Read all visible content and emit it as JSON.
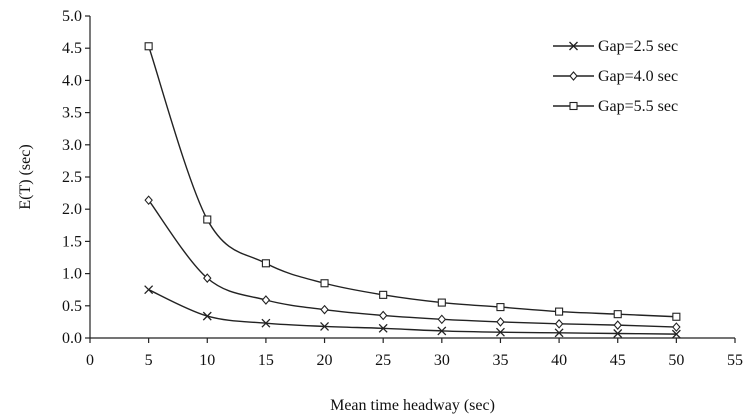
{
  "chart_data": {
    "type": "line",
    "title": "",
    "xlabel": "Mean time headway (sec)",
    "ylabel": "E(T) (sec)",
    "xlim": [
      0,
      55
    ],
    "ylim": [
      0,
      5.0
    ],
    "x_ticks": [
      "0",
      "5",
      "10",
      "15",
      "20",
      "25",
      "30",
      "35",
      "40",
      "45",
      "50",
      "55"
    ],
    "y_ticks": [
      "0.0",
      "0.5",
      "1.0",
      "1.5",
      "2.0",
      "2.5",
      "3.0",
      "3.5",
      "4.0",
      "4.5",
      "5.0"
    ],
    "grid": false,
    "legend_position": "top-right",
    "x": [
      5,
      10,
      15,
      20,
      25,
      30,
      35,
      40,
      45,
      50
    ],
    "series": [
      {
        "name": "Gap=2.5 sec",
        "marker": "x",
        "values": [
          0.75,
          0.34,
          0.23,
          0.18,
          0.15,
          0.11,
          0.09,
          0.08,
          0.07,
          0.06
        ]
      },
      {
        "name": "Gap=4.0 sec",
        "marker": "diamond",
        "values": [
          2.14,
          0.93,
          0.59,
          0.44,
          0.35,
          0.29,
          0.25,
          0.22,
          0.2,
          0.17
        ]
      },
      {
        "name": "Gap=5.5 sec",
        "marker": "square",
        "values": [
          4.53,
          1.84,
          1.16,
          0.85,
          0.67,
          0.55,
          0.48,
          0.41,
          0.37,
          0.33
        ]
      }
    ]
  }
}
